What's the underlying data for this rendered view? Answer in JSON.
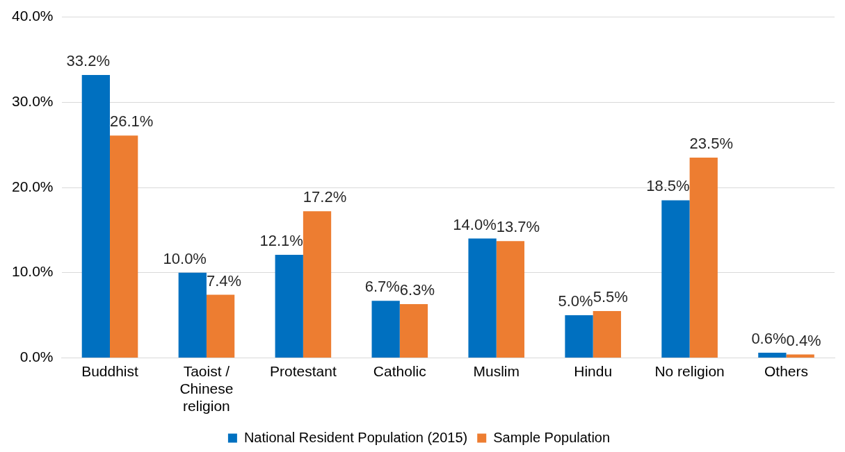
{
  "chart_data": {
    "type": "bar",
    "categories": [
      "Buddhist",
      "Taoist / Chinese religion",
      "Protestant",
      "Catholic",
      "Muslim",
      "Hindu",
      "No religion",
      "Others"
    ],
    "series": [
      {
        "name": "National Resident Population (2015)",
        "color": "#0070c0",
        "values": [
          33.2,
          10.0,
          12.1,
          6.7,
          14.0,
          5.0,
          18.5,
          0.6
        ],
        "value_labels": [
          "33.2%",
          "10.0%",
          "12.1%",
          "6.7%",
          "14.0%",
          "5.0%",
          "18.5%",
          "0.6%"
        ]
      },
      {
        "name": "Sample Population",
        "color": "#ed7d31",
        "values": [
          26.1,
          7.4,
          17.2,
          6.3,
          13.7,
          5.5,
          23.5,
          0.4
        ],
        "value_labels": [
          "26.1%",
          "7.4%",
          "17.2%",
          "6.3%",
          "13.7%",
          "5.5%",
          "23.5%",
          "0.4%"
        ]
      }
    ],
    "ylim": [
      0,
      40
    ],
    "yticks": [
      {
        "value": 0,
        "label": "0.0%"
      },
      {
        "value": 10,
        "label": "10.0%"
      },
      {
        "value": 20,
        "label": "20.0%"
      },
      {
        "value": 30,
        "label": "30.0%"
      },
      {
        "value": 40,
        "label": "40.0%"
      }
    ],
    "grid": "y",
    "legend": "bottom"
  }
}
